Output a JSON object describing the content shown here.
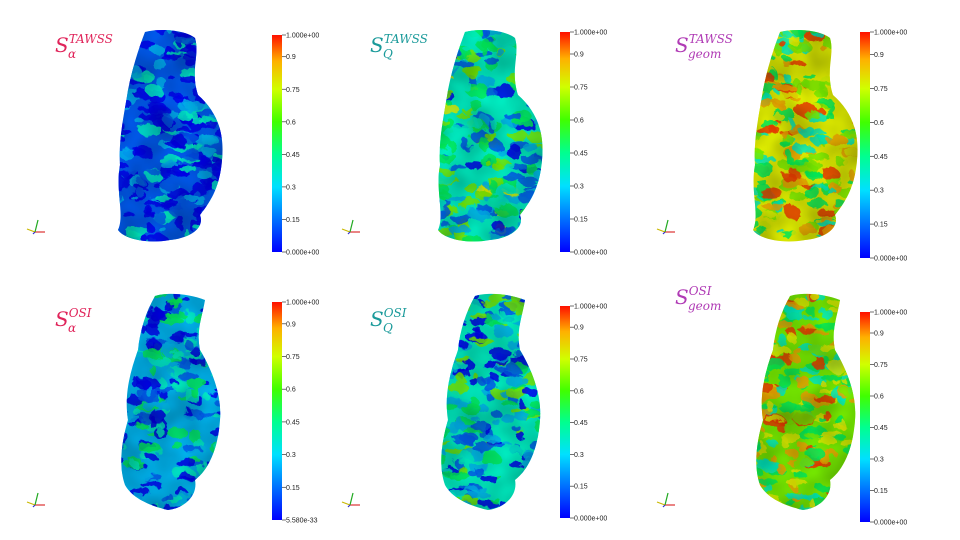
{
  "colors": {
    "alpha": "#e0245a",
    "Q": "#1a9a9a",
    "geom": "#b03bb5",
    "colormap": [
      "#0000ff",
      "#00aaff",
      "#00ffff",
      "#00ff80",
      "#7fff00",
      "#ffff00",
      "#ffaa00",
      "#ff0000"
    ]
  },
  "panels": [
    {
      "id": "alpha-tawss",
      "title": {
        "S": "S",
        "sub": "α",
        "sup": "TAWSS"
      },
      "title_color": "#e0245a",
      "colorbar_ticks": [
        "1.000e+00",
        "0.9",
        "0.75",
        "0.6",
        "0.45",
        "0.3",
        "0.15",
        "0.000e+00"
      ],
      "mean_level": 0.12
    },
    {
      "id": "q-tawss",
      "title": {
        "S": "S",
        "sub": "Q",
        "sup": "TAWSS"
      },
      "title_color": "#1a9a9a",
      "colorbar_ticks": [
        "1.000e+00",
        "0.9",
        "0.75",
        "0.6",
        "0.45",
        "0.3",
        "0.15",
        "0.000e+00"
      ],
      "mean_level": 0.35
    },
    {
      "id": "geom-tawss",
      "title": {
        "S": "S",
        "sub": "geom",
        "sup": "TAWSS"
      },
      "title_color": "#b03bb5",
      "colorbar_ticks": [
        "1.000e+00",
        "0.9",
        "0.75",
        "0.6",
        "0.45",
        "0.3",
        "0.15",
        "0.000e+00"
      ],
      "mean_level": 0.6
    },
    {
      "id": "alpha-osi",
      "title": {
        "S": "S",
        "sub": "α",
        "sup": "OSI"
      },
      "title_color": "#e0245a",
      "colorbar_ticks": [
        "1.000e+00",
        "0.9",
        "0.75",
        "0.6",
        "0.45",
        "0.3",
        "0.15",
        "5.580e-33"
      ],
      "mean_level": 0.2
    },
    {
      "id": "q-osi",
      "title": {
        "S": "S",
        "sub": "Q",
        "sup": "OSI"
      },
      "title_color": "#1a9a9a",
      "colorbar_ticks": [
        "1.000e+00",
        "0.9",
        "0.75",
        "0.6",
        "0.45",
        "0.3",
        "0.15",
        "0.000e+00"
      ],
      "mean_level": 0.3
    },
    {
      "id": "geom-osi",
      "title": {
        "S": "S",
        "sub": "geom",
        "sup": "OSI"
      },
      "title_color": "#b03bb5",
      "colorbar_ticks": [
        "1.000e+00",
        "0.9",
        "0.75",
        "0.6",
        "0.45",
        "0.3",
        "0.15",
        "0.000e+00"
      ],
      "mean_level": 0.58
    }
  ]
}
